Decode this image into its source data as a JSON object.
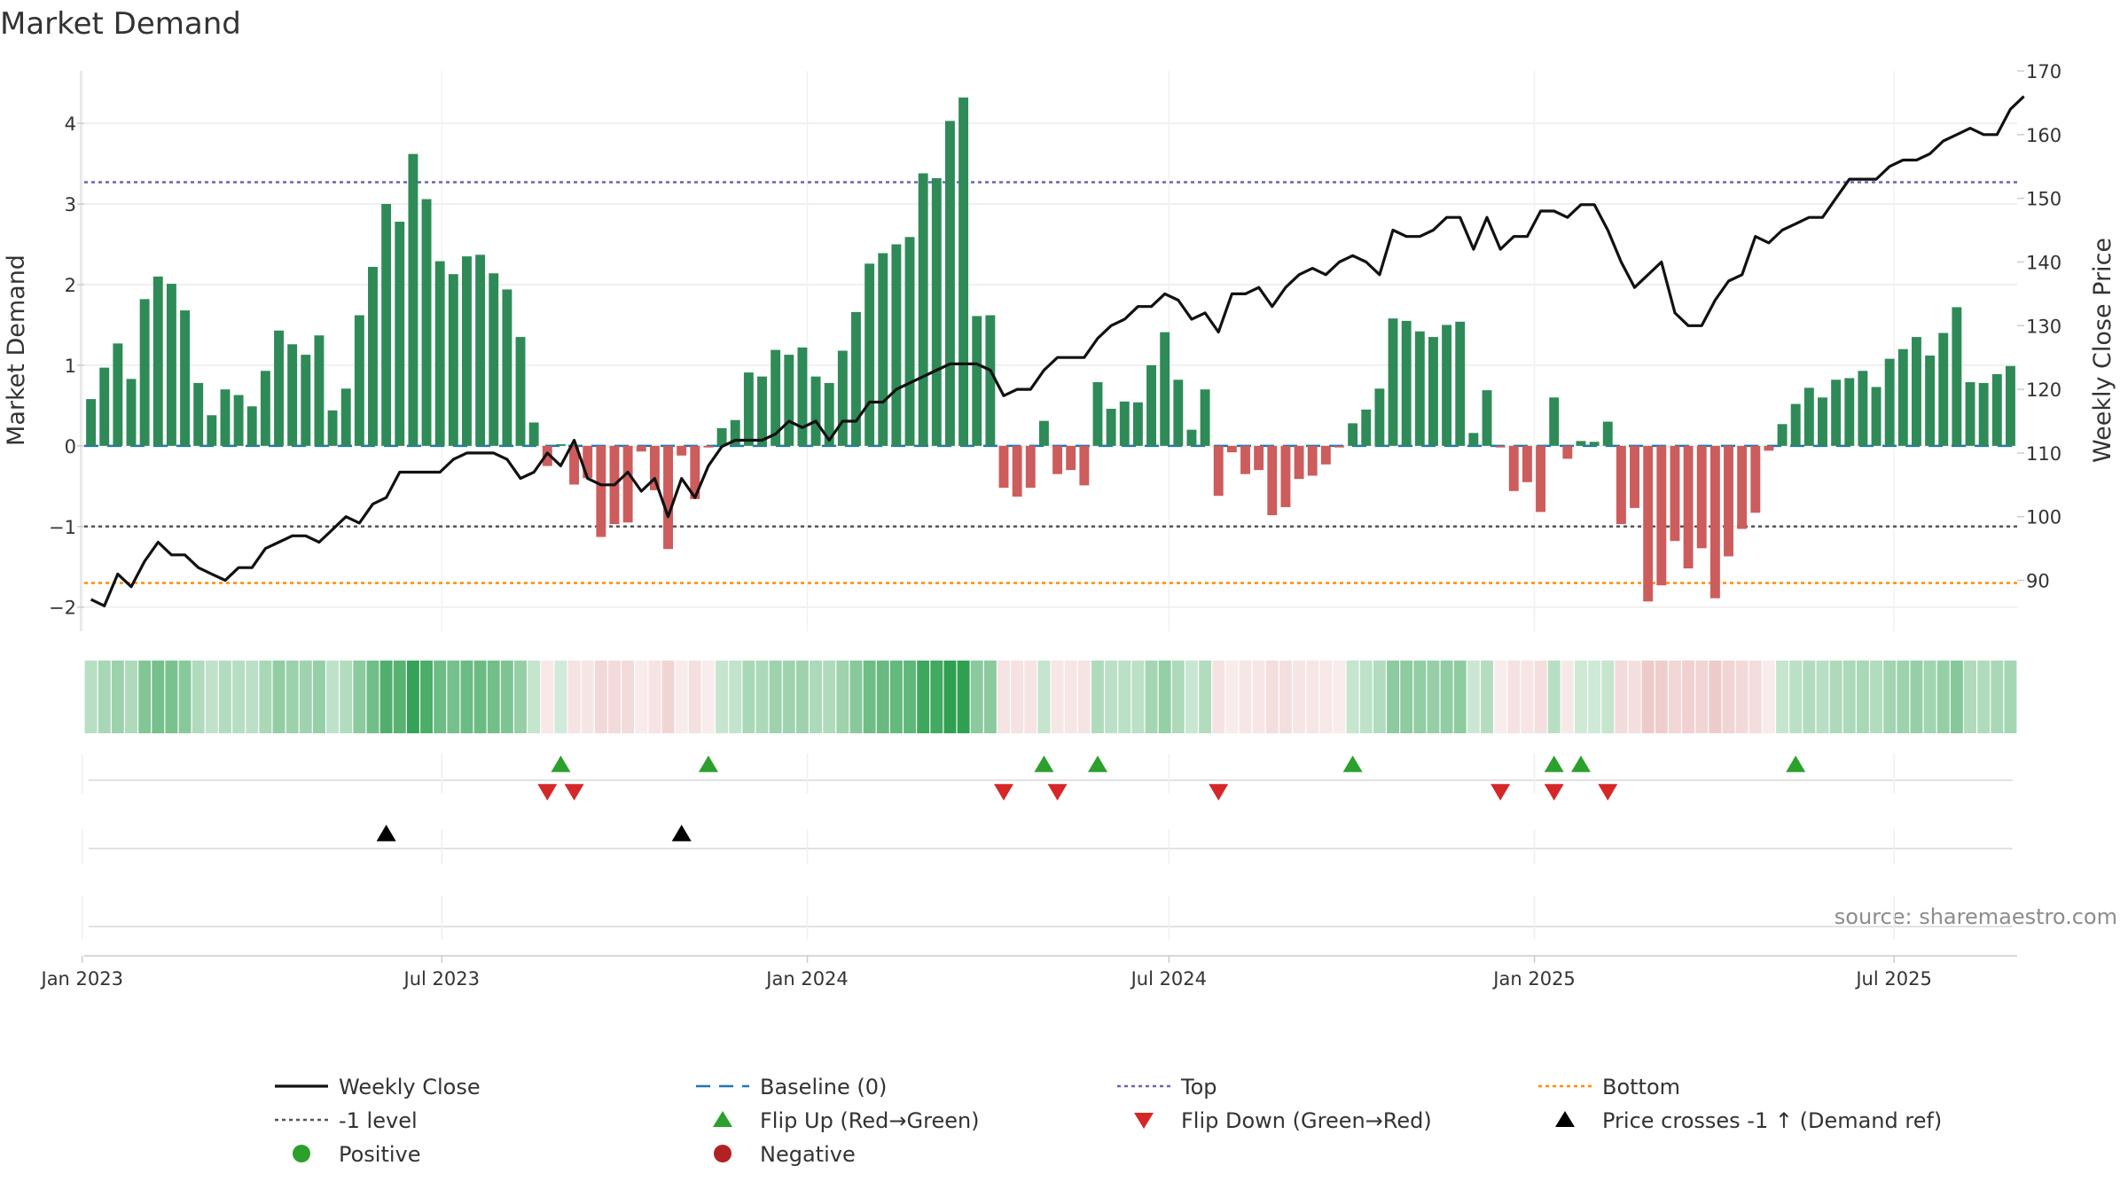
{
  "chart_data": {
    "type": "bar",
    "title": "Market Demand",
    "ylabel": "Market Demand",
    "y2label": "Weekly Close Price",
    "source": "source: sharemaestro.com",
    "x_start": "2023-01-02",
    "x_end": "2025-09-01",
    "x_ticks": [
      {
        "date": "2023-01-01",
        "label": "Jan 2023"
      },
      {
        "date": "2023-07-01",
        "label": "Jul 2023"
      },
      {
        "date": "2024-01-01",
        "label": "Jan 2024"
      },
      {
        "date": "2024-07-01",
        "label": "Jul 2024"
      },
      {
        "date": "2025-01-01",
        "label": "Jan 2025"
      },
      {
        "date": "2025-07-01",
        "label": "Jul 2025"
      }
    ],
    "ylim": [
      -2.3,
      4.65
    ],
    "y_ticks": [
      -2,
      -1,
      0,
      1,
      2,
      3,
      4
    ],
    "y2lim": [
      82,
      170
    ],
    "y2_ticks": [
      90,
      100,
      110,
      120,
      130,
      140,
      150,
      160,
      170
    ],
    "levels": {
      "top": 3.27,
      "minus_one": -1,
      "bottom": -1.7,
      "baseline": 0
    },
    "demand": [
      0.58,
      0.97,
      1.27,
      0.83,
      1.82,
      2.1,
      2.01,
      1.68,
      0.78,
      0.38,
      0.7,
      0.63,
      0.49,
      0.93,
      1.43,
      1.26,
      1.13,
      1.37,
      0.44,
      0.71,
      1.62,
      2.22,
      3.0,
      2.78,
      3.62,
      3.06,
      2.29,
      2.13,
      2.35,
      2.37,
      2.14,
      1.94,
      1.35,
      0.29,
      -0.25,
      0.02,
      -0.48,
      -0.4,
      -1.13,
      -0.97,
      -0.95,
      -0.07,
      -0.55,
      -1.28,
      -0.12,
      -0.66,
      -0.02,
      0.22,
      0.32,
      0.91,
      0.86,
      1.19,
      1.13,
      1.22,
      0.86,
      0.78,
      1.18,
      1.66,
      2.26,
      2.39,
      2.5,
      2.59,
      3.38,
      3.32,
      4.03,
      4.32,
      1.61,
      1.62,
      -0.52,
      -0.63,
      -0.52,
      0.31,
      -0.35,
      -0.3,
      -0.49,
      0.79,
      0.46,
      0.55,
      0.54,
      1.0,
      1.41,
      0.82,
      0.2,
      0.7,
      -0.62,
      -0.08,
      -0.35,
      -0.3,
      -0.86,
      -0.76,
      -0.41,
      -0.37,
      -0.23,
      -0.02,
      0.28,
      0.45,
      0.71,
      1.58,
      1.55,
      1.42,
      1.35,
      1.5,
      1.54,
      0.16,
      0.69,
      -0.02,
      -0.56,
      -0.45,
      -0.82,
      0.6,
      -0.16,
      0.06,
      0.05,
      0.3,
      -0.97,
      -0.77,
      -1.93,
      -1.73,
      -1.18,
      -1.52,
      -1.27,
      -1.89,
      -1.37,
      -1.03,
      -0.83,
      -0.06,
      0.27,
      0.52,
      0.72,
      0.6,
      0.82,
      0.84,
      0.93,
      0.73,
      1.08,
      1.2,
      1.35,
      1.12,
      1.4,
      1.72,
      0.79,
      0.78,
      0.89,
      0.99
    ],
    "price": [
      87,
      86,
      91,
      89,
      93,
      96,
      94,
      94,
      92,
      91,
      90,
      92,
      92,
      95,
      96,
      97,
      97,
      96,
      98,
      100,
      99,
      102,
      103,
      107,
      107,
      107,
      107,
      109,
      110,
      110,
      110,
      109,
      106,
      107,
      110,
      108,
      112,
      106,
      105,
      105,
      107,
      104,
      106,
      100,
      106,
      103,
      108,
      111,
      112,
      112,
      112,
      113,
      115,
      114,
      115,
      112,
      115,
      115,
      118,
      118,
      120,
      121,
      122,
      123,
      124,
      124,
      124,
      123,
      119,
      120,
      120,
      123,
      125,
      125,
      125,
      128,
      130,
      131,
      133,
      133,
      135,
      134,
      131,
      132,
      129,
      135,
      135,
      136,
      133,
      136,
      138,
      139,
      138,
      140,
      141,
      140,
      138,
      145,
      144,
      144,
      145,
      147,
      147,
      142,
      147,
      142,
      144,
      144,
      148,
      148,
      147,
      149,
      149,
      145,
      140,
      136,
      138,
      140,
      132,
      130,
      130,
      134,
      137,
      138,
      144,
      143,
      145,
      146,
      147,
      147,
      150,
      153,
      153,
      153,
      155,
      156,
      156,
      157,
      159,
      160,
      161,
      160,
      160,
      164,
      166
    ],
    "flip_up_weeks": [
      35,
      46,
      71,
      75,
      94,
      109,
      111,
      127
    ],
    "flip_down_weeks": [
      34,
      36,
      68,
      72,
      84,
      105,
      109,
      113
    ],
    "price_cross_weeks": [
      22,
      44
    ],
    "legend": [
      {
        "label": "Weekly Close",
        "kind": "line",
        "color": "#111111"
      },
      {
        "label": "Baseline (0)",
        "kind": "dashed",
        "color": "#1f77b4"
      },
      {
        "label": "Top",
        "kind": "dotted",
        "color": "#6b63b5"
      },
      {
        "label": "Bottom",
        "kind": "dotted",
        "color": "#ff8c00"
      },
      {
        "label": "-1 level",
        "kind": "dotted",
        "color": "#555555"
      },
      {
        "label": "Flip Up (Red→Green)",
        "kind": "tri-up",
        "color": "#2ca02c"
      },
      {
        "label": "Flip Down (Green→Red)",
        "kind": "tri-down",
        "color": "#d62728"
      },
      {
        "label": "Price crosses -1 ↑ (Demand ref)",
        "kind": "tri-up",
        "color": "#000000"
      },
      {
        "label": "Positive",
        "kind": "dot",
        "color": "#2ca02c"
      },
      {
        "label": "Negative",
        "kind": "dot",
        "color": "#b22222"
      }
    ],
    "colors": {
      "positive_bar": "#2e8b57",
      "negative_bar": "#cd5c5c",
      "price_line": "#111111",
      "baseline": "#1f77b4",
      "top": "#6b63b5",
      "minus_one": "#555555",
      "bottom": "#ff8c00"
    }
  }
}
